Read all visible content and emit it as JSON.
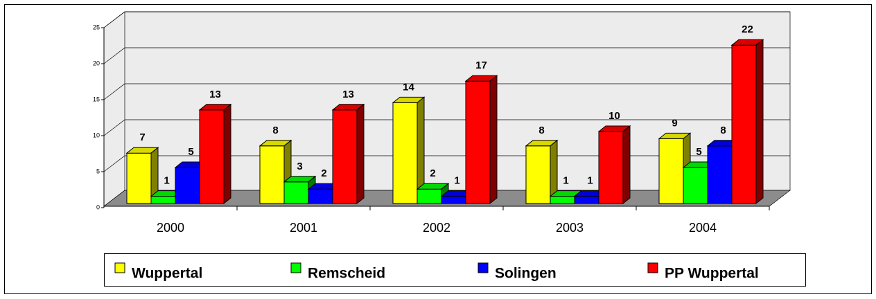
{
  "chart_data": {
    "type": "bar3d",
    "categories": [
      "2000",
      "2001",
      "2002",
      "2003",
      "2004"
    ],
    "series": [
      {
        "name": "Wuppertal",
        "color": "#ffff00",
        "values": [
          7,
          8,
          14,
          8,
          9
        ]
      },
      {
        "name": "Remscheid",
        "color": "#00ff00",
        "values": [
          1,
          3,
          2,
          1,
          5
        ]
      },
      {
        "name": "Solingen",
        "color": "#0000ff",
        "values": [
          5,
          2,
          1,
          1,
          8
        ]
      },
      {
        "name": "PP Wuppertal",
        "color": "#ff0000",
        "values": [
          13,
          13,
          17,
          10,
          22
        ]
      }
    ],
    "ylim": [
      0,
      25
    ],
    "yticks": [
      0,
      5,
      10,
      15,
      20,
      25
    ],
    "grid": true,
    "legend": "bottom"
  }
}
